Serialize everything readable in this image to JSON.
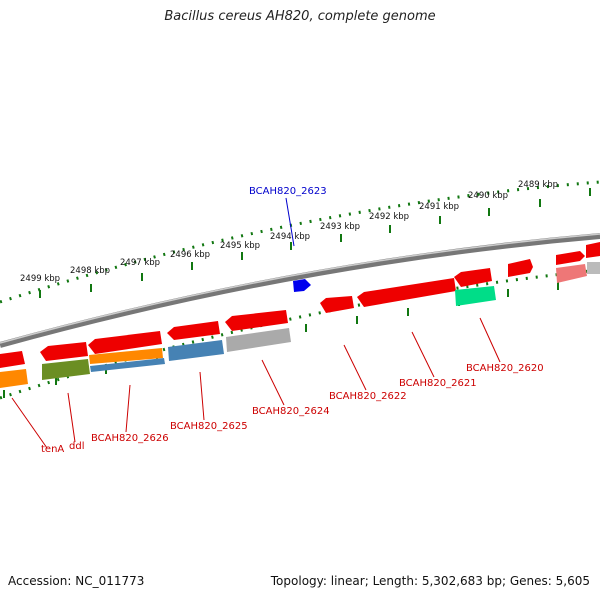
{
  "title": "Bacillus cereus AH820, complete genome",
  "footer": {
    "accession_label": "Accession:",
    "accession": "NC_011773",
    "topology_label": "Topology:",
    "topology": "linear",
    "length_label": "Length:",
    "length": "5,302,683 bp",
    "genes_label": "Genes:",
    "genes": "5,605"
  },
  "scale_labels": [
    "2499 kbp",
    "2498 kbp",
    "2497 kbp",
    "2496 kbp",
    "2495 kbp",
    "2494 kbp",
    "2493 kbp",
    "2492 kbp",
    "2491 kbp",
    "2490 kbp",
    "2489 kbp"
  ],
  "gene_labels": {
    "bcah820_2623": "BCAH820_2623",
    "tena": "tenA",
    "ddl": "ddl",
    "bcah820_2626": "BCAH820_2626",
    "bcah820_2625": "BCAH820_2625",
    "bcah820_2624": "BCAH820_2624",
    "bcah820_2622": "BCAH820_2622",
    "bcah820_2621": "BCAH820_2621",
    "bcah820_2620": "BCAH820_2620"
  },
  "colors": {
    "cds": "#ee0000",
    "highlight": "#0000ee",
    "backbone": "#888888",
    "scale": "#117711",
    "label_red": "#cc0000",
    "label_blue": "#0000cc",
    "orange": "#ff8800",
    "olive": "#6b8e23",
    "steelblue": "#4682b4",
    "gray": "#aaaaaa",
    "green": "#00dd88",
    "pink": "#ee7777"
  }
}
